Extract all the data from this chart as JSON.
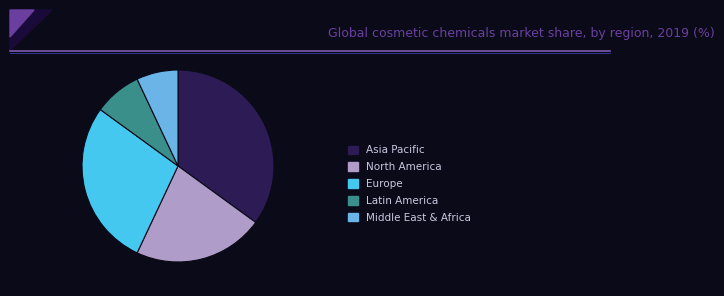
{
  "title": "Global cosmetic chemicals market share, by region, 2019 (%)",
  "title_color": "#6b3fa0",
  "slices": [
    35.0,
    22.0,
    28.0,
    8.0,
    7.0
  ],
  "labels": [
    "Asia Pacific",
    "North America",
    "Europe",
    "Latin America",
    "Middle East & Africa"
  ],
  "colors": [
    "#2d1b55",
    "#b09cc8",
    "#45c8f0",
    "#3a8f8a",
    "#6ab4e8"
  ],
  "background_color": "#0a0a18",
  "legend_text_color": "#c8c8e0",
  "startangle": 90,
  "legend_fontsize": 7.5,
  "title_fontsize": 9,
  "header_line_color": "#7b5bb0",
  "header_line_color2": "#3a3aaa",
  "triangle_color": "#6b3fa0"
}
